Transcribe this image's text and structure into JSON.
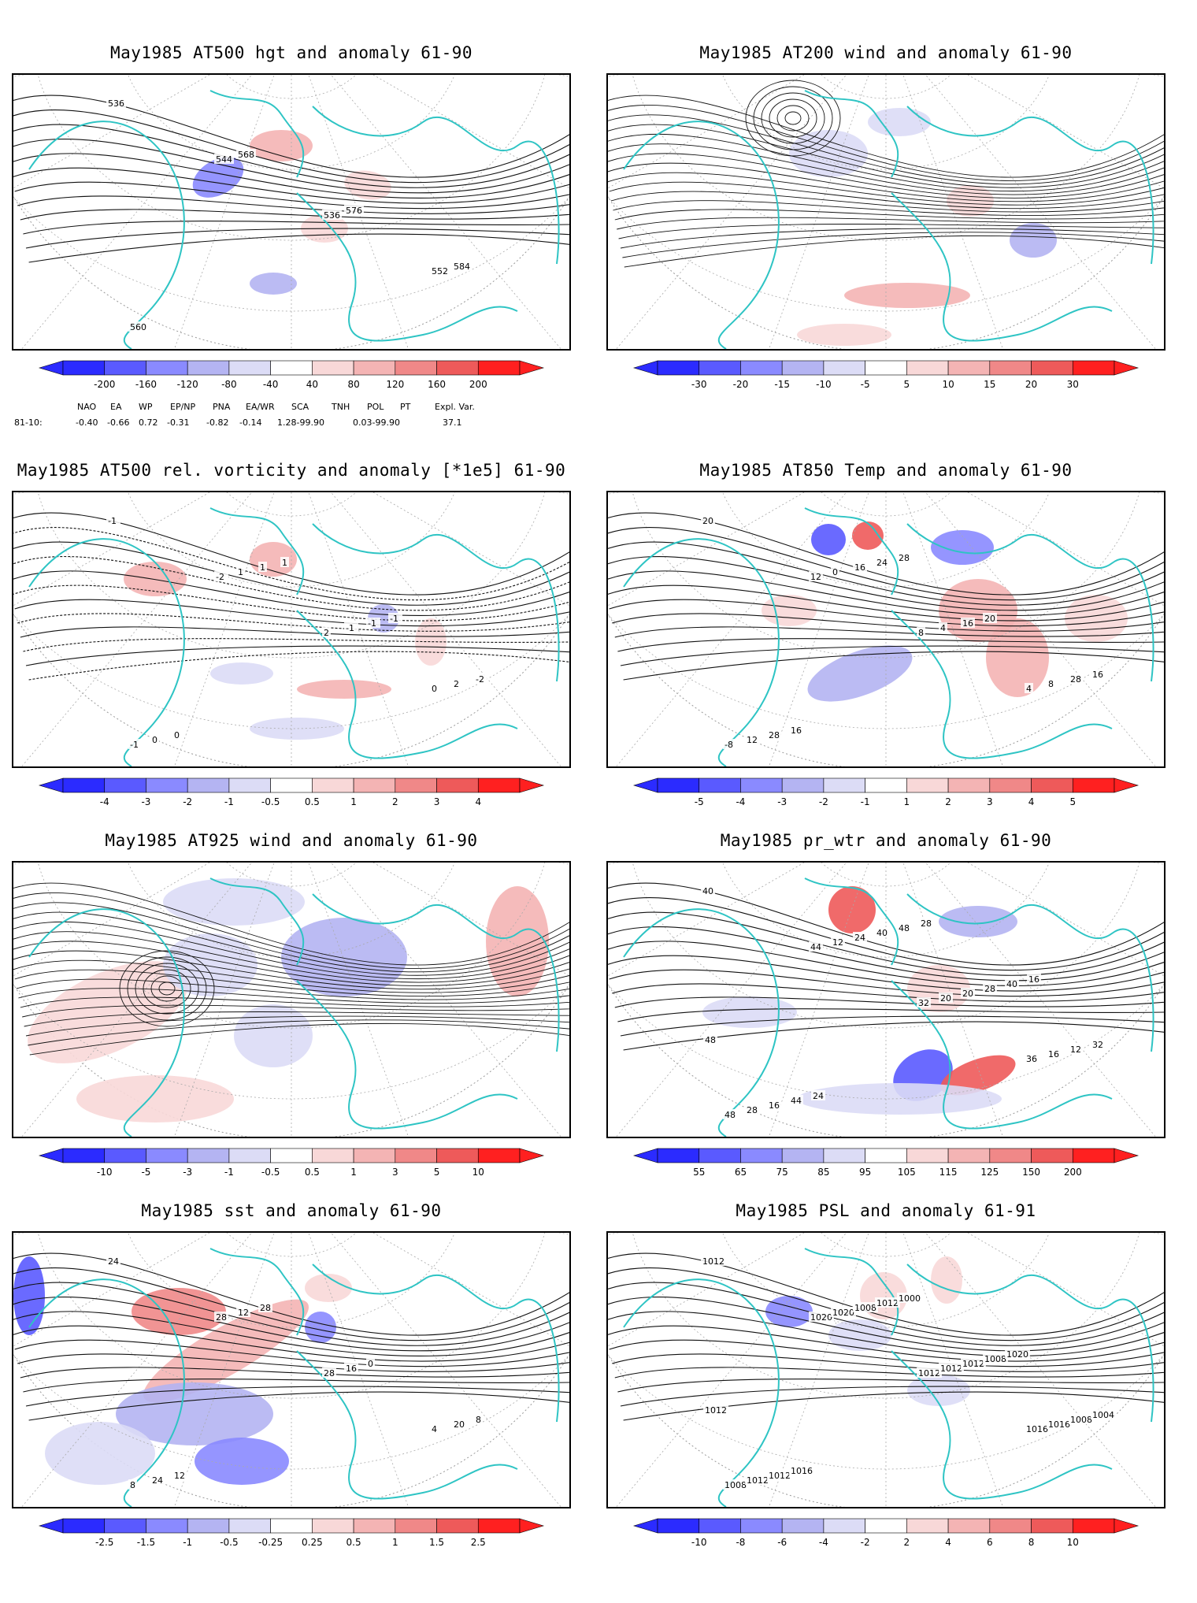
{
  "panels": [
    {
      "title": "May1985 AT500 hgt and anomaly 61-90",
      "ticks": [
        "-200",
        "-160",
        "-120",
        "-80",
        "-40",
        "40",
        "80",
        "120",
        "160",
        "200"
      ],
      "labels": [
        "536",
        "544",
        "536",
        "552",
        "560",
        "568",
        "576",
        "584"
      ]
    },
    {
      "title": "May1985 AT200 wind and anomaly 61-90",
      "ticks": [
        "-30",
        "-20",
        "-15",
        "-10",
        "-5",
        "5",
        "10",
        "15",
        "20",
        "30"
      ],
      "labels": []
    },
    {
      "title": "May1985 AT500 rel. vorticity and anomaly [*1e5] 61-90",
      "ticks": [
        "-4",
        "-3",
        "-2",
        "-1",
        "-0.5",
        "0.5",
        "1",
        "2",
        "3",
        "4"
      ],
      "labels": [
        "-1",
        "-2",
        "2",
        "0",
        "-1",
        "1",
        "-1",
        "2",
        "0",
        "1",
        "-1",
        "-2",
        "0",
        "1",
        "-1"
      ]
    },
    {
      "title": "May1985 AT850 Temp and anomaly 61-90",
      "ticks": [
        "-5",
        "-4",
        "-3",
        "-2",
        "-1",
        "1",
        "2",
        "3",
        "4",
        "5"
      ],
      "labels": [
        "20",
        "12",
        "8",
        "4",
        "-8",
        "0",
        "4",
        "8",
        "12",
        "16",
        "16",
        "28",
        "28",
        "24",
        "20",
        "16",
        "16",
        "28"
      ]
    },
    {
      "title": "May1985 AT925 wind and anomaly 61-90",
      "ticks": [
        "-10",
        "-5",
        "-3",
        "-1",
        "-0.5",
        "0.5",
        "1",
        "3",
        "5",
        "10"
      ],
      "labels": []
    },
    {
      "title": "May1985 pr_wtr and anomaly 61-90",
      "ticks": [
        "55",
        "65",
        "75",
        "85",
        "95",
        "105",
        "115",
        "125",
        "150",
        "200"
      ],
      "labels": [
        "40",
        "44",
        "32",
        "36",
        "48",
        "12",
        "20",
        "16",
        "28",
        "24",
        "20",
        "12",
        "16",
        "40",
        "28",
        "32",
        "44",
        "48",
        "40",
        "48",
        "24",
        "28",
        "16"
      ]
    },
    {
      "title": "May1985 sst and anomaly 61-90",
      "ticks": [
        "-2.5",
        "-1.5",
        "-1",
        "-0.5",
        "-0.25",
        "0.25",
        "0.5",
        "1",
        "1.5",
        "2.5"
      ],
      "labels": [
        "24",
        "28",
        "28",
        "4",
        "8",
        "12",
        "16",
        "20",
        "24",
        "28",
        "0",
        "8",
        "12"
      ]
    },
    {
      "title": "May1985 PSL and anomaly 61-91",
      "ticks": [
        "-10",
        "-8",
        "-6",
        "-4",
        "-2",
        "2",
        "4",
        "6",
        "8",
        "10"
      ],
      "labels": [
        "1012",
        "1020",
        "1012",
        "1016",
        "1008",
        "1020",
        "1012",
        "1016",
        "1012",
        "1008",
        "1012",
        "1008",
        "1012",
        "1012",
        "1008",
        "1004",
        "1016",
        "1000",
        "1020",
        "1012"
      ]
    }
  ],
  "indices": {
    "row_label": "81-10:",
    "names": [
      "NAO",
      "EA",
      "WP",
      "EP/NP",
      "PNA",
      "EA/WR",
      "SCA",
      "TNH",
      "POL",
      "PT",
      "Expl. Var."
    ],
    "values": [
      "-0.40",
      "-0.66",
      "0.72",
      "-0.31",
      "-0.82",
      "-0.14",
      "1.28-99.90",
      "0.03-99.90",
      "37.1"
    ]
  },
  "colors": {
    "blue_scale": [
      "#2b2bff",
      "#5a5aff",
      "#8a8aff",
      "#b4b4f2",
      "#dcdcf6"
    ],
    "red_scale": [
      "#f8d8d8",
      "#f4b4b4",
      "#f08888",
      "#ee5a5a",
      "#ff2020"
    ],
    "coast": "#2ec4c4"
  }
}
